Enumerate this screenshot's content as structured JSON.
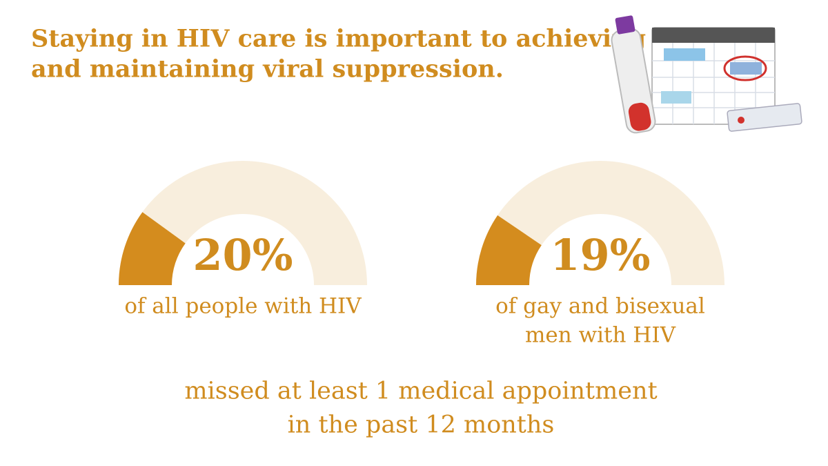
{
  "title": [
    "Staying in HIV care is important to achieving",
    "and maintaining viral suppression."
  ],
  "chart_data": [
    {
      "type": "gauge",
      "values": [
        20
      ],
      "value_labels": [
        "20%"
      ],
      "ylim": [
        0,
        100
      ],
      "caption": [
        "of all people with HIV"
      ],
      "color": "#d48c1e",
      "track_color": "#f8eedd"
    },
    {
      "type": "gauge",
      "values": [
        19
      ],
      "value_labels": [
        "19%"
      ],
      "ylim": [
        0,
        100
      ],
      "caption": [
        "of gay and bisexual",
        "men with HIV"
      ],
      "color": "#d48c1e",
      "track_color": "#f8eedd"
    }
  ],
  "footer": [
    "missed at least 1 medical appointment",
    "in the past 12 months"
  ]
}
